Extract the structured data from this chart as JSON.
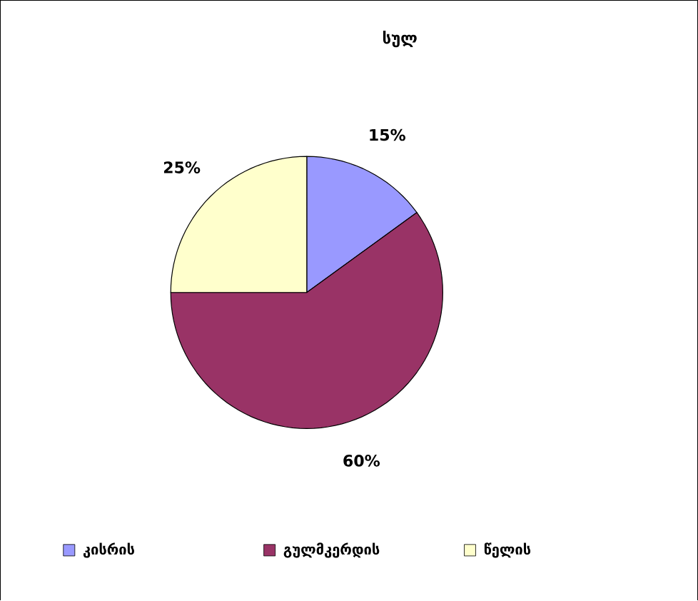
{
  "chart_data": {
    "type": "pie",
    "title": "სულ",
    "categories": [
      "კისრის",
      "გულმკერდის",
      "წელის"
    ],
    "values": [
      15,
      60,
      25
    ],
    "value_labels": [
      "15%",
      "60%",
      "25%"
    ],
    "colors": [
      "#9999ff",
      "#993366",
      "#ffffcc"
    ],
    "legend": "bottom left"
  }
}
